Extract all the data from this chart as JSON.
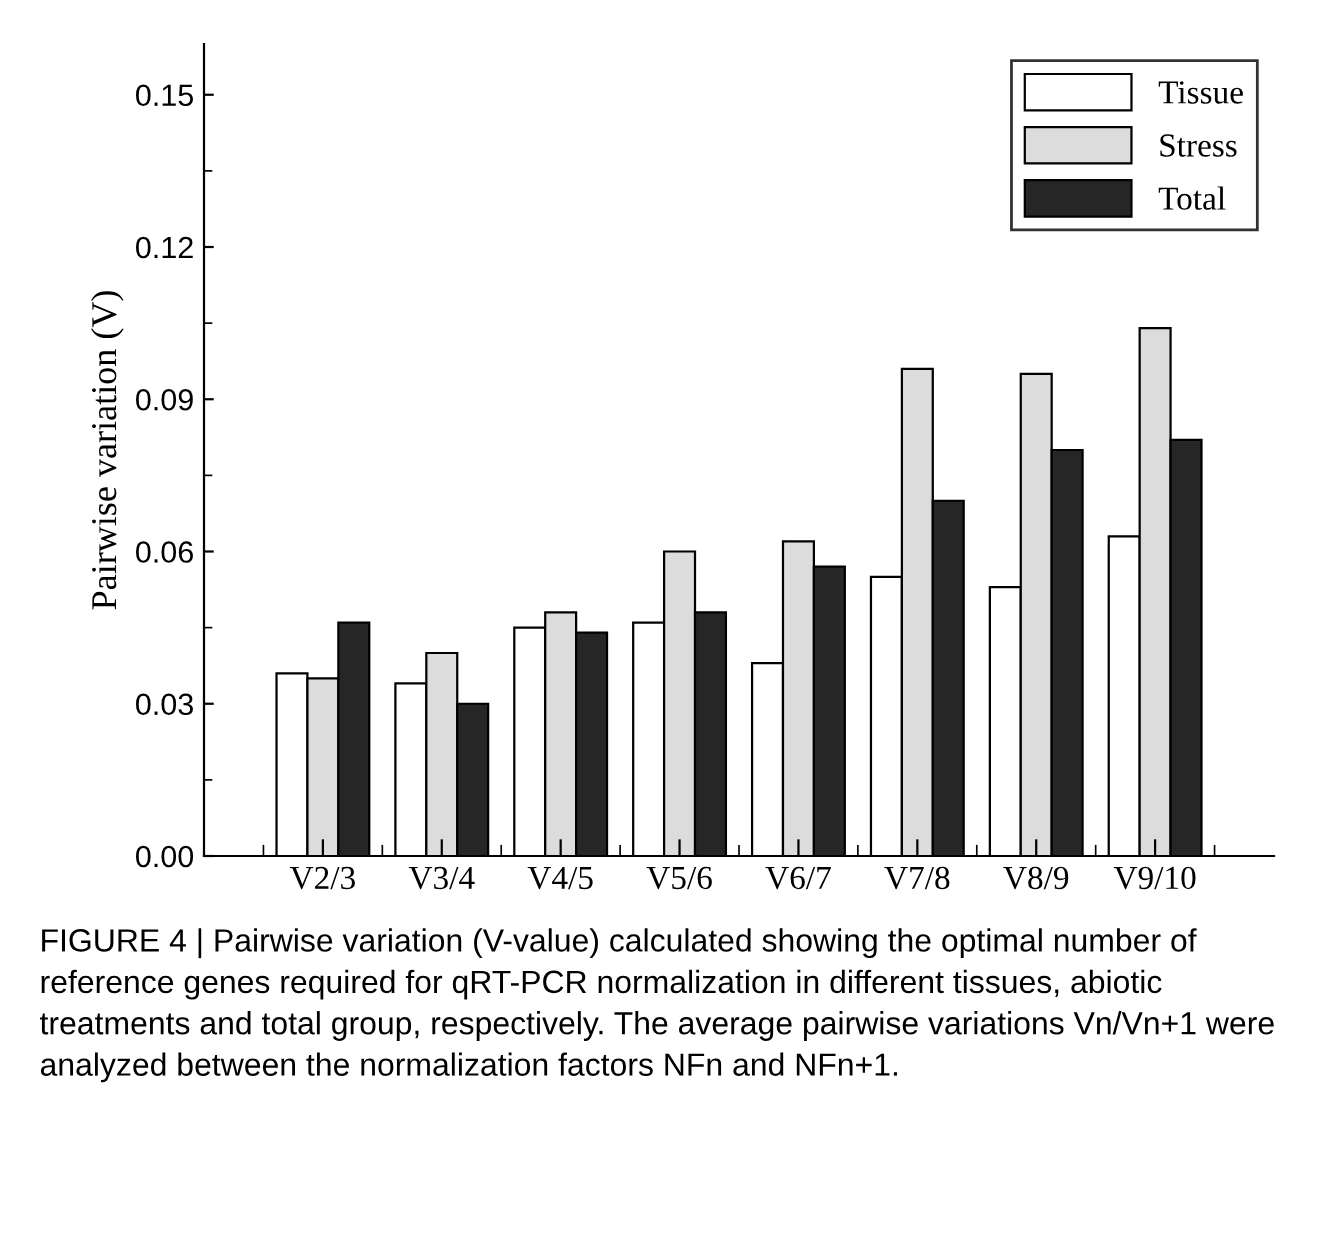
{
  "chart_data": {
    "type": "bar",
    "ylabel": "Pairwise variation (V)",
    "categories": [
      "V2/3",
      "V3/4",
      "V4/5",
      "V5/6",
      "V6/7",
      "V7/8",
      "V8/9",
      "V9/10"
    ],
    "series": [
      {
        "name": "Tissue",
        "color": "#ffffff",
        "values": [
          0.036,
          0.034,
          0.045,
          0.046,
          0.038,
          0.055,
          0.053,
          0.063
        ]
      },
      {
        "name": "Stress",
        "color": "#dcdcdc",
        "values": [
          0.035,
          0.04,
          0.048,
          0.06,
          0.062,
          0.096,
          0.095,
          0.104
        ]
      },
      {
        "name": "Total",
        "color": "#262626",
        "values": [
          0.046,
          0.03,
          0.044,
          0.048,
          0.057,
          0.07,
          0.08,
          0.082
        ]
      }
    ],
    "ylim": [
      0,
      0.16
    ],
    "yticks": [
      {
        "value": 0,
        "label": "0.00"
      },
      {
        "value": 0.03,
        "label": "0.03"
      },
      {
        "value": 0.06,
        "label": "0.06"
      },
      {
        "value": 0.09,
        "label": "0.09"
      },
      {
        "value": 0.12,
        "label": "0.12"
      },
      {
        "value": 0.15,
        "label": "0.15"
      }
    ],
    "grid": false,
    "legend": "top right",
    "annotations": [
      "FIGURE 4 | Pairwise variation (V-value) calculated showing the optimal number of reference genes required for qRT-PCR normalization in different tissues, abiotic treatments and total group, respectively. The average pairwise variations Vn/Vn+1 were analyzed between the normalization factors NFn and NFn+1."
    ]
  }
}
